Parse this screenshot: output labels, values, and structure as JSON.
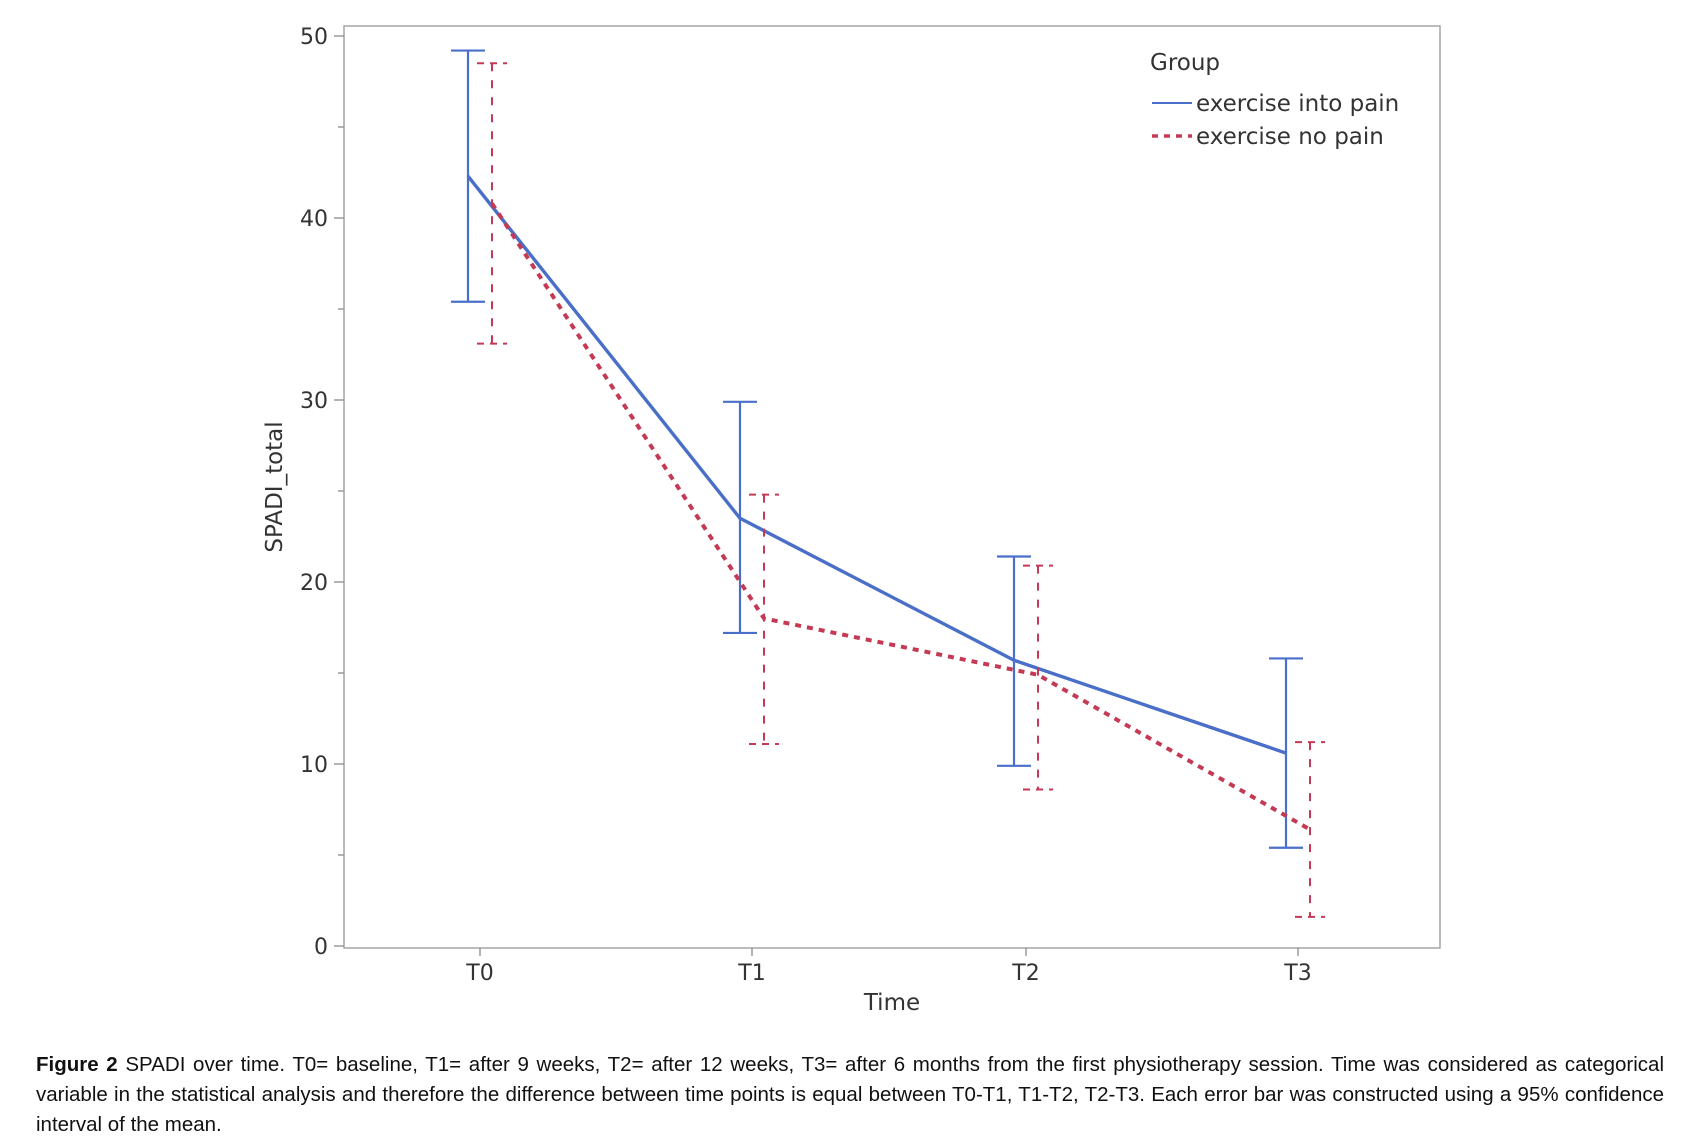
{
  "chart_data": {
    "type": "line",
    "title": "",
    "xlabel": "Time",
    "ylabel": "SPADI_total",
    "categories": [
      "T0",
      "T1",
      "T2",
      "T3"
    ],
    "ylim": [
      0,
      50
    ],
    "yticks": [
      0,
      10,
      20,
      30,
      40,
      50
    ],
    "grid": false,
    "legend": {
      "title": "Group",
      "placement": "top-right"
    },
    "series": [
      {
        "name": "exercise into pain",
        "color": "#4a6fc9",
        "line_style": "solid",
        "values": [
          42.3,
          23.5,
          15.7,
          10.6
        ],
        "ci_low": [
          35.4,
          17.2,
          9.9,
          5.4
        ],
        "ci_high": [
          49.2,
          29.9,
          21.4,
          15.8
        ]
      },
      {
        "name": "exercise no pain",
        "color": "#c43a55",
        "line_style": "dashed",
        "values": [
          40.8,
          18.0,
          14.9,
          6.4
        ],
        "ci_low": [
          33.1,
          11.1,
          8.6,
          1.6
        ],
        "ci_high": [
          48.5,
          24.8,
          20.9,
          11.2
        ]
      }
    ]
  },
  "caption": {
    "label": "Figure 2",
    "text": " SPADI over time. T0= baseline, T1= after 9 weeks, T2= after 12 weeks, T3= after 6 months from the first physiotherapy session. Time was considered as categorical variable in the statistical analysis and therefore the difference between time points is equal between T0-T1, T1-T2, T2-T3. Each error bar was constructed using a 95% confidence interval of the mean."
  }
}
